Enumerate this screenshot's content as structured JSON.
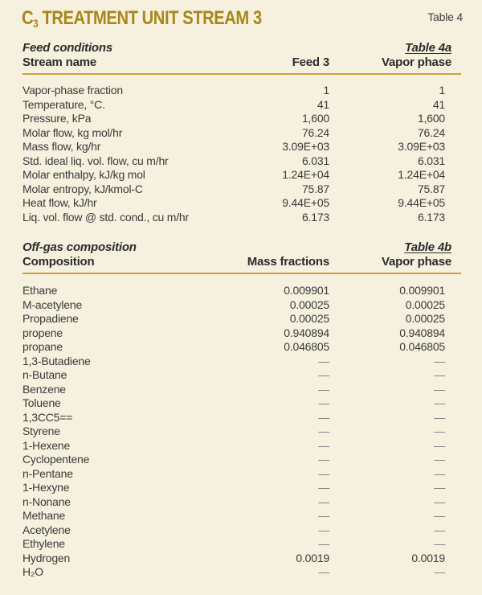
{
  "masthead": {
    "title": {
      "prefix": "C",
      "subscript": "3",
      "rest": " TREATMENT UNIT STREAM 3"
    },
    "table_label": "Table 4"
  },
  "colors": {
    "bg": "#f5f1de",
    "gold": "#a8861c",
    "rule": "#c6a33b",
    "ink": "#2c2c2c",
    "body": "#3a3a3a",
    "dash": "#7f7f7f",
    "ref": "#3f3f3f"
  },
  "feed_section": {
    "section_title": "Feed conditions",
    "table_ref": "Table 4a",
    "header": {
      "label": "Stream name",
      "col1": "Feed 3",
      "col2": "Vapor phase"
    },
    "rows": [
      {
        "label": "Vapor-phase fraction",
        "v1": "1",
        "v2": "1"
      },
      {
        "label": "Temperature, °C.",
        "v1": "41",
        "v2": "41"
      },
      {
        "label": "Pressure, kPa",
        "v1": "1,600",
        "v2": "1,600"
      },
      {
        "label": "Molar flow, kg mol/hr",
        "v1": "76.24",
        "v2": "76.24"
      },
      {
        "label": "Mass flow, kg/hr",
        "v1": "3.09E+03",
        "v2": "3.09E+03"
      },
      {
        "label": "Std. ideal liq. vol. flow, cu m/hr",
        "v1": "6.031",
        "v2": "6.031"
      },
      {
        "label": "Molar enthalpy, kJ/kg mol",
        "v1": "1.24E+04",
        "v2": "1.24E+04"
      },
      {
        "label": "Molar entropy, kJ/kmol-C",
        "v1": "75.87",
        "v2": "75.87"
      },
      {
        "label": "Heat flow, kJ/hr",
        "v1": "9.44E+05",
        "v2": "9.44E+05"
      },
      {
        "label": "Liq. vol. flow @ std. cond., cu m/hr",
        "v1": "6.173",
        "v2": "6.173"
      }
    ]
  },
  "offgas_section": {
    "section_title": "Off-gas composition",
    "table_ref": "Table 4b",
    "header": {
      "label": "Composition",
      "col1": "Mass fractions",
      "col2": "Vapor phase"
    },
    "rows": [
      {
        "label": "Ethane",
        "v1": "0.009901",
        "v2": "0.009901"
      },
      {
        "label": "M-acetylene",
        "v1": "0.00025",
        "v2": "0.00025"
      },
      {
        "label": "Propadiene",
        "v1": "0.00025",
        "v2": "0.00025"
      },
      {
        "label": "propene",
        "v1": "0.940894",
        "v2": "0.940894"
      },
      {
        "label": "propane",
        "v1": "0.046805",
        "v2": "0.046805"
      },
      {
        "label": "1,3-Butadiene",
        "v1": "—",
        "v2": "—"
      },
      {
        "label": "n-Butane",
        "v1": "—",
        "v2": "—"
      },
      {
        "label": "Benzene",
        "v1": "—",
        "v2": "—"
      },
      {
        "label": "Toluene",
        "v1": "—",
        "v2": "—"
      },
      {
        "label": "1,3CC5==",
        "v1": "—",
        "v2": "—"
      },
      {
        "label": "Styrene",
        "v1": "—",
        "v2": "—"
      },
      {
        "label": "1-Hexene",
        "v1": "—",
        "v2": "—"
      },
      {
        "label": "Cyclopentene",
        "v1": "—",
        "v2": "—"
      },
      {
        "label": "n-Pentane",
        "v1": "—",
        "v2": "—"
      },
      {
        "label": "1-Hexyne",
        "v1": "—",
        "v2": "—"
      },
      {
        "label": "n-Nonane",
        "v1": "—",
        "v2": "—"
      },
      {
        "label": "Methane",
        "v1": "—",
        "v2": "—"
      },
      {
        "label": "Acetylene",
        "v1": "—",
        "v2": "—"
      },
      {
        "label": "Ethylene",
        "v1": "—",
        "v2": "—"
      },
      {
        "label": "Hydrogen",
        "v1": "0.0019",
        "v2": "0.0019"
      },
      {
        "label": "H₂O",
        "v1": "—",
        "v2": "—"
      }
    ]
  }
}
